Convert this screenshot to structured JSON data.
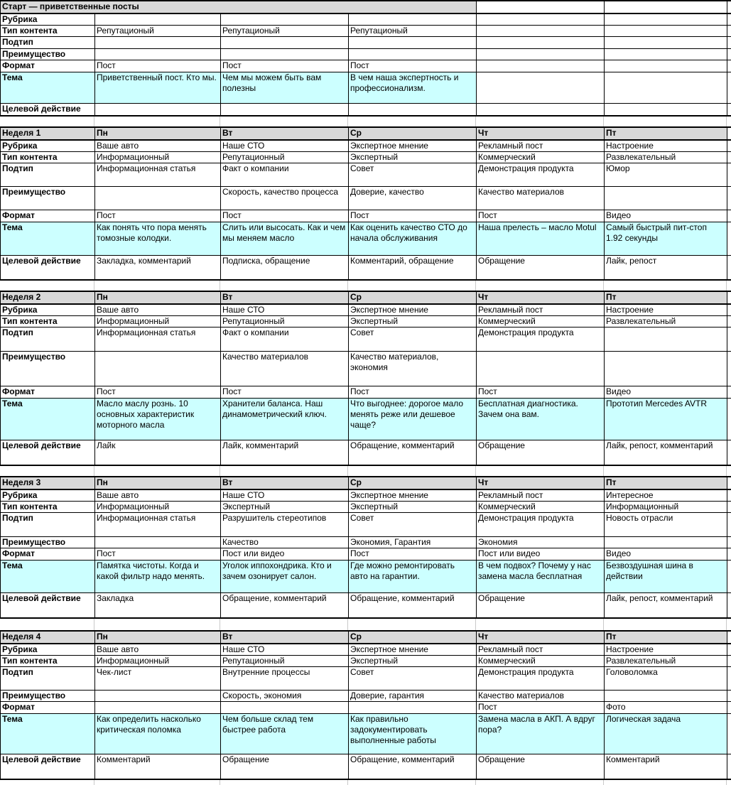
{
  "colors": {
    "header_bg": "#d9d9d9",
    "topic_highlight_bg": "#ccffff",
    "border": "#000000"
  },
  "row_labels": [
    "Рубрика",
    "Тип контента",
    "Подтип",
    "Преимущество",
    "Формат",
    "Тема",
    "Целевой действие"
  ],
  "day_headers": [
    "Пн",
    "Вт",
    "Ср",
    "Чт",
    "Пт"
  ],
  "sections": [
    {
      "id": "start",
      "title": "Старт — приветственные посты",
      "merged_header": true,
      "highlight_cols": 3,
      "rows": [
        [
          "",
          "",
          "",
          "",
          ""
        ],
        [
          "Репутационый",
          "Репутационый",
          "Репутационый",
          "",
          ""
        ],
        [
          "",
          "",
          "",
          "",
          ""
        ],
        [
          "",
          "",
          "",
          "",
          ""
        ],
        [
          "Пост",
          "Пост",
          "Пост",
          "",
          ""
        ],
        [
          "Приветственный пост. Кто мы.",
          "Чем мы можем быть вам полезны",
          "В чем наша экспертность и профессионализм.",
          "",
          ""
        ],
        [
          "",
          "",
          "",
          "",
          ""
        ]
      ]
    },
    {
      "id": "week-1",
      "title": "Неделя 1",
      "merged_header": false,
      "highlight_cols": 5,
      "rows": [
        [
          "Ваше авто",
          "Наше СТО",
          "Экспертное мнение",
          "Рекламный пост",
          "Настроение"
        ],
        [
          "Информационный",
          "Репутационный",
          "Экспертный",
          "Коммерческий",
          "Развлекательный"
        ],
        [
          "Информационная статья",
          "Факт о компании",
          "Совет",
          "Демонстрация продукта",
          "Юмор"
        ],
        [
          "",
          "Скорость, качество процесса",
          "Доверие, качество",
          "Качество материалов",
          ""
        ],
        [
          "Пост",
          "Пост",
          "Пост",
          "Пост",
          "Видео"
        ],
        [
          "Как понять что пора менять томозные колодки.",
          "Слить или высосать. Как и чем мы меняем масло",
          "Как оценить качество СТО до начала обслуживания",
          "Наша прелесть – масло Motul",
          "Самый быстрый пит-стоп 1.92 секунды"
        ],
        [
          "Закладка, комментарий",
          "Подписка, обращение",
          "Комментарий, обращение",
          "Обращение",
          "Лайк, репост"
        ]
      ]
    },
    {
      "id": "week-2",
      "title": "Неделя 2",
      "merged_header": false,
      "highlight_cols": 5,
      "rows": [
        [
          "Ваше авто",
          "Наше СТО",
          "Экспертное мнение",
          "Рекламный пост",
          "Настроение"
        ],
        [
          "Информационный",
          "Репутационный",
          "Экспертный",
          "Коммерческий",
          "Развлекательный"
        ],
        [
          "Информационная статья",
          "Факт о компании",
          "Совет",
          "Демонстрация продукта",
          ""
        ],
        [
          "",
          "Качество материалов",
          "Качество материалов, экономия",
          "",
          ""
        ],
        [
          "Пост",
          "Пост",
          "Пост",
          "Пост",
          "Видео"
        ],
        [
          "Масло маслу рознь. 10 основных характеристик моторного масла",
          "Хранители баланса. Наш динамометрический ключ.",
          "Что выгоднее: дорогое мало менять реже или дешевое чаще?",
          "Бесплатная диагностика. Зачем она вам.",
          "Прототип Mercedes AVTR"
        ],
        [
          "Лайк",
          "Лайк, комментарий",
          "Обращение, комментарий",
          "Обращение",
          "Лайк, репост, комментарий"
        ]
      ]
    },
    {
      "id": "week-3",
      "title": "Неделя 3",
      "merged_header": false,
      "highlight_cols": 5,
      "rows": [
        [
          "Ваше авто",
          "Наше СТО",
          "Экспертное мнение",
          "Рекламный пост",
          "Интересное"
        ],
        [
          "Информационный",
          "Экспертный",
          "Экспертный",
          "Коммерческий",
          "Информационный"
        ],
        [
          "Информационная статья",
          "Разрушитель стереотипов",
          "Совет",
          "Демонстрация продукта",
          "Новость отрасли"
        ],
        [
          "",
          "Качество",
          "Экономия, Гарантия",
          "Экономия",
          ""
        ],
        [
          "Пост",
          "Пост или видео",
          "Пост",
          "Пост или видео",
          "Видео"
        ],
        [
          "Памятка чистоты. Когда и какой фильтр надо менять.",
          "Уголок иппохондрика. Кто и зачем озонирует салон.",
          "Где можно ремонтировать авто на гарантии.",
          "В чем подвох? Почему у нас замена масла бесплатная",
          "Безвоздушная шина в действии"
        ],
        [
          "Закладка",
          "Обращение, комментарий",
          "Обращение, комментарий",
          "Обращение",
          "Лайк, репост, комментарий"
        ]
      ]
    },
    {
      "id": "week-4",
      "title": "Неделя 4",
      "merged_header": false,
      "highlight_cols": 5,
      "rows": [
        [
          "Ваше авто",
          "Наше СТО",
          "Экспертное мнение",
          "Рекламный пост",
          "Настроение"
        ],
        [
          "Информационный",
          "Репутационный",
          "Экспертный",
          "Коммерческий",
          "Развлекательный"
        ],
        [
          "Чек-лист",
          "Внутренние процессы",
          "Совет",
          "Демонстрация продукта",
          "Головоломка"
        ],
        [
          "",
          "Скорость, экономия",
          "Доверие, гарантия",
          "Качество материалов",
          ""
        ],
        [
          "",
          "",
          "",
          "Пост",
          "Фото"
        ],
        [
          "Как определить насколько критическая поломка",
          "Чем больше склад тем быстрее работа",
          "Как правильно задокументировать выполненные работы",
          "Замена масла в АКП. А вдруг пора?",
          "Логическая задача"
        ],
        [
          "Комментарий",
          "Обращение",
          "Обращение, комментарий",
          "Обращение",
          "Комментарий"
        ]
      ]
    }
  ]
}
